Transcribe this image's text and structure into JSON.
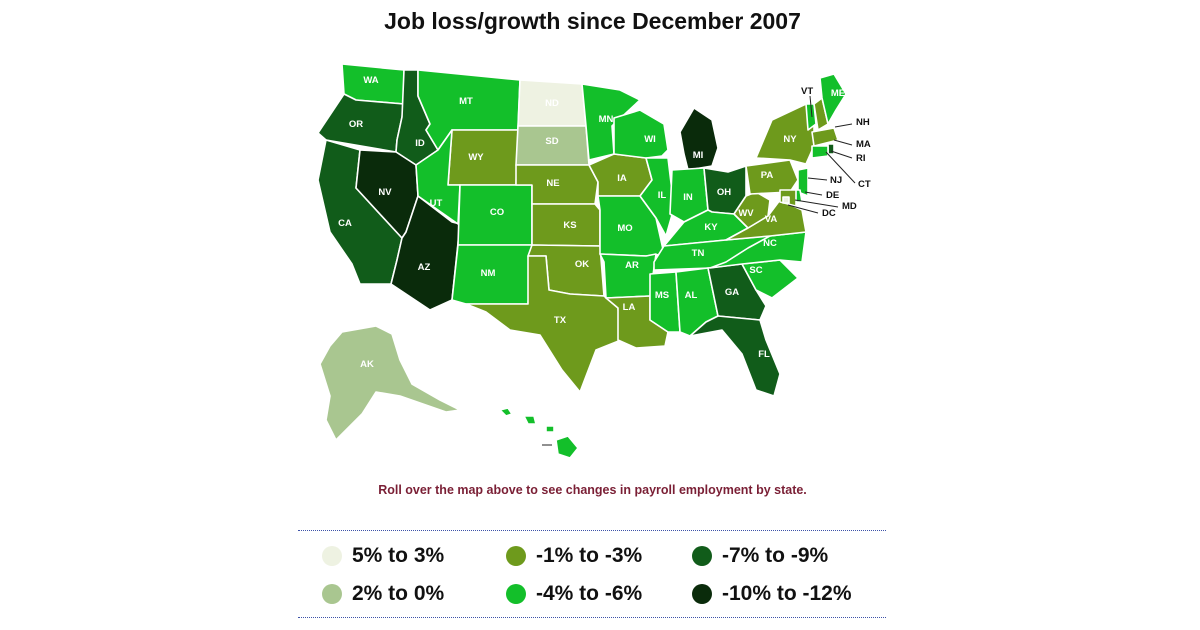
{
  "title": "Job loss/growth since December 2007",
  "instruction": "Roll over the map above to see changes in payroll employment by state.",
  "legend": [
    {
      "label": "5% to 3%",
      "color": "#eef2e2"
    },
    {
      "label": "2% to 0%",
      "color": "#a9c690"
    },
    {
      "label": "-1% to -3%",
      "color": "#6e9a1c"
    },
    {
      "label": "-4% to -6%",
      "color": "#13bf2a"
    },
    {
      "label": "-7% to -9%",
      "color": "#115c1a"
    },
    {
      "label": "-10% to -12%",
      "color": "#0a2b0b"
    }
  ],
  "states": {
    "WA": 3,
    "OR": 4,
    "CA": 4,
    "ID": 4,
    "NV": 5,
    "AZ": 5,
    "MT": 3,
    "WY": 2,
    "UT": 3,
    "CO": 3,
    "NM": 3,
    "ND": 0,
    "SD": 1,
    "NE": 2,
    "KS": 2,
    "OK": 2,
    "TX": 2,
    "MN": 3,
    "IA": 2,
    "MO": 3,
    "AR": 3,
    "LA": 2,
    "WI": 3,
    "IL": 3,
    "MI": 5,
    "IN": 3,
    "OH": 4,
    "KY": 3,
    "TN": 3,
    "MS": 3,
    "AL": 3,
    "GA": 4,
    "FL": 4,
    "SC": 3,
    "NC": 3,
    "VA": 2,
    "WV": 2,
    "PA": 2,
    "NY": 2,
    "VT": 3,
    "NH": 2,
    "ME": 3,
    "MA": 2,
    "RI": 4,
    "CT": 3,
    "NJ": 3,
    "DE": 3,
    "MD": 2,
    "DC": 0,
    "AK": 1,
    "HI": 3
  }
}
